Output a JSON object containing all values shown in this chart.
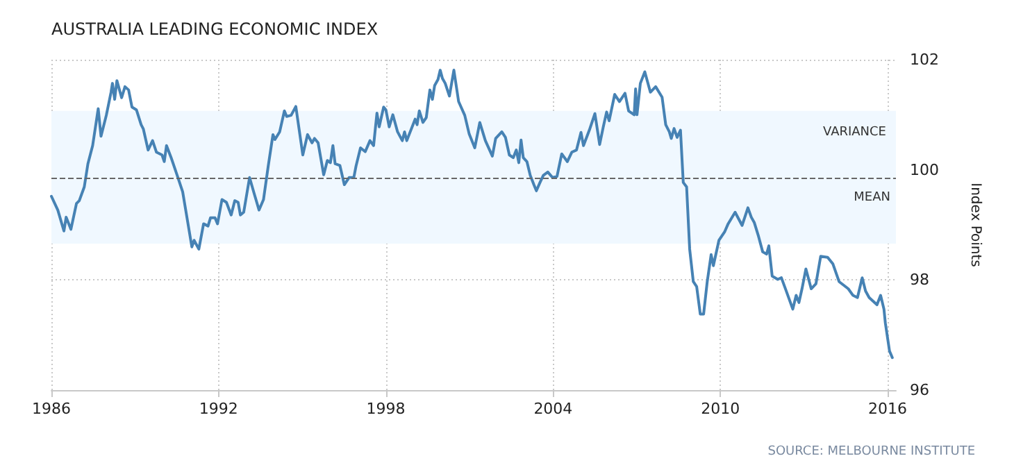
{
  "chart_data": {
    "type": "line",
    "title": "AUSTRALIA LEADING ECONOMIC INDEX",
    "ylabel": "Index Points",
    "annotations": [
      "SOURCE: MELBOURNE INSTITUTE"
    ],
    "xlim": [
      1986,
      2016.3
    ],
    "xticks": [
      1986,
      1992,
      1998,
      2004,
      2010,
      2016
    ],
    "ylim": [
      96,
      102
    ],
    "yticks": [
      96,
      98,
      100,
      102
    ],
    "grid": true,
    "marker": "none",
    "line_style": "solid",
    "ref_lines": [
      {
        "axis": "y",
        "value": 99.86,
        "label": "MEAN",
        "color": "#666666",
        "line_style": "dashed"
      }
    ],
    "bands": [
      {
        "axis": "y",
        "from": 98.66,
        "to": 101.07,
        "label": "VARIANCE",
        "color": "#f0f8ff"
      }
    ],
    "series": [
      {
        "color": "#4682b4",
        "x": [
          1986.0,
          1986.23,
          1986.45,
          1986.53,
          1986.7,
          1986.9,
          1987.0,
          1987.18,
          1987.31,
          1987.48,
          1987.68,
          1987.78,
          1987.97,
          1988.14,
          1988.19,
          1988.27,
          1988.35,
          1988.52,
          1988.64,
          1988.77,
          1988.89,
          1989.05,
          1989.22,
          1989.3,
          1989.47,
          1989.63,
          1989.77,
          1989.97,
          1990.05,
          1990.13,
          1990.29,
          1990.54,
          1990.71,
          1991.04,
          1991.12,
          1991.29,
          1991.46,
          1991.62,
          1991.71,
          1991.87,
          1991.96,
          1992.12,
          1992.28,
          1992.45,
          1992.58,
          1992.7,
          1992.78,
          1992.9,
          1993.11,
          1993.28,
          1993.45,
          1993.61,
          1993.78,
          1993.95,
          1994.02,
          1994.19,
          1994.36,
          1994.44,
          1994.6,
          1994.77,
          1995.02,
          1995.19,
          1995.35,
          1995.44,
          1995.57,
          1995.77,
          1995.9,
          1996.01,
          1996.1,
          1996.18,
          1996.35,
          1996.51,
          1996.68,
          1996.85,
          1996.93,
          1997.09,
          1997.26,
          1997.43,
          1997.56,
          1997.68,
          1997.76,
          1997.92,
          1998.0,
          1998.12,
          1998.25,
          1998.42,
          1998.59,
          1998.67,
          1998.75,
          1999.05,
          1999.12,
          1999.2,
          1999.33,
          1999.45,
          1999.58,
          1999.67,
          1999.75,
          1999.87,
          1999.95,
          2000.03,
          2000.13,
          2000.28,
          2000.44,
          2000.61,
          2000.83,
          2000.99,
          2001.19,
          2001.37,
          2001.57,
          2001.82,
          2001.94,
          2002.16,
          2002.29,
          2002.43,
          2002.57,
          2002.68,
          2002.77,
          2002.85,
          2002.93,
          2003.06,
          2003.18,
          2003.31,
          2003.4,
          2003.53,
          2003.65,
          2003.81,
          2003.98,
          2004.14,
          2004.31,
          2004.51,
          2004.67,
          2004.84,
          2005.0,
          2005.09,
          2005.3,
          2005.5,
          2005.67,
          2005.8,
          2005.92,
          2006.01,
          2006.21,
          2006.38,
          2006.58,
          2006.71,
          2006.91,
          2006.96,
          2007.01,
          2007.13,
          2007.29,
          2007.49,
          2007.68,
          2007.91,
          2008.04,
          2008.17,
          2008.24,
          2008.34,
          2008.45,
          2008.57,
          2008.67,
          2008.79,
          2008.9,
          2009.03,
          2009.15,
          2009.28,
          2009.4,
          2009.53,
          2009.67,
          2009.75,
          2009.95,
          2010.16,
          2010.28,
          2010.53,
          2010.78,
          2010.99,
          2011.11,
          2011.22,
          2011.36,
          2011.52,
          2011.66,
          2011.74,
          2011.86,
          2012.06,
          2012.19,
          2012.35,
          2012.6,
          2012.72,
          2012.82,
          2012.93,
          2013.07,
          2013.26,
          2013.43,
          2013.6,
          2013.85,
          2014.04,
          2014.26,
          2014.59,
          2014.76,
          2014.92,
          2015.09,
          2015.21,
          2015.34,
          2015.62,
          2015.75,
          2015.87,
          2015.92,
          2016.07,
          2016.17
        ],
        "values": [
          99.52,
          99.27,
          98.89,
          99.14,
          98.92,
          99.39,
          99.44,
          99.69,
          100.11,
          100.44,
          101.11,
          100.61,
          100.99,
          101.41,
          101.57,
          101.28,
          101.62,
          101.31,
          101.51,
          101.45,
          101.14,
          101.09,
          100.82,
          100.74,
          100.36,
          100.53,
          100.32,
          100.27,
          100.15,
          100.44,
          100.23,
          99.86,
          99.6,
          98.6,
          98.72,
          98.56,
          99.02,
          98.98,
          99.13,
          99.13,
          99.02,
          99.46,
          99.41,
          99.18,
          99.44,
          99.41,
          99.18,
          99.23,
          99.86,
          99.56,
          99.27,
          99.46,
          100.07,
          100.64,
          100.55,
          100.69,
          101.07,
          100.97,
          100.99,
          101.15,
          100.27,
          100.64,
          100.49,
          100.57,
          100.49,
          99.91,
          100.17,
          100.13,
          100.44,
          100.11,
          100.08,
          99.73,
          99.86,
          99.86,
          100.07,
          100.4,
          100.33,
          100.53,
          100.44,
          101.03,
          100.78,
          101.14,
          101.09,
          100.78,
          101.0,
          100.69,
          100.53,
          100.69,
          100.53,
          100.92,
          100.82,
          101.07,
          100.86,
          100.95,
          101.45,
          101.28,
          101.53,
          101.64,
          101.81,
          101.66,
          101.57,
          101.34,
          101.81,
          101.24,
          100.99,
          100.65,
          100.4,
          100.86,
          100.53,
          100.25,
          100.57,
          100.69,
          100.59,
          100.27,
          100.22,
          100.36,
          100.13,
          100.54,
          100.22,
          100.15,
          99.9,
          99.73,
          99.62,
          99.77,
          99.9,
          99.96,
          99.86,
          99.88,
          100.29,
          100.15,
          100.32,
          100.36,
          100.68,
          100.44,
          100.72,
          101.02,
          100.46,
          100.78,
          101.05,
          100.89,
          101.37,
          101.24,
          101.39,
          101.07,
          101.0,
          101.47,
          101.0,
          101.57,
          101.78,
          101.41,
          101.51,
          101.32,
          100.82,
          100.69,
          100.57,
          100.75,
          100.59,
          100.72,
          99.77,
          99.69,
          98.56,
          97.97,
          97.88,
          97.38,
          97.38,
          97.97,
          98.46,
          98.26,
          98.72,
          98.88,
          99.02,
          99.23,
          98.99,
          99.31,
          99.14,
          99.04,
          98.81,
          98.51,
          98.47,
          98.62,
          98.07,
          98.01,
          98.04,
          97.82,
          97.47,
          97.72,
          97.59,
          97.84,
          98.2,
          97.84,
          97.93,
          98.43,
          98.41,
          98.29,
          97.97,
          97.84,
          97.72,
          97.68,
          98.04,
          97.8,
          97.68,
          97.55,
          97.72,
          97.47,
          97.22,
          96.71,
          96.59
        ]
      }
    ]
  }
}
